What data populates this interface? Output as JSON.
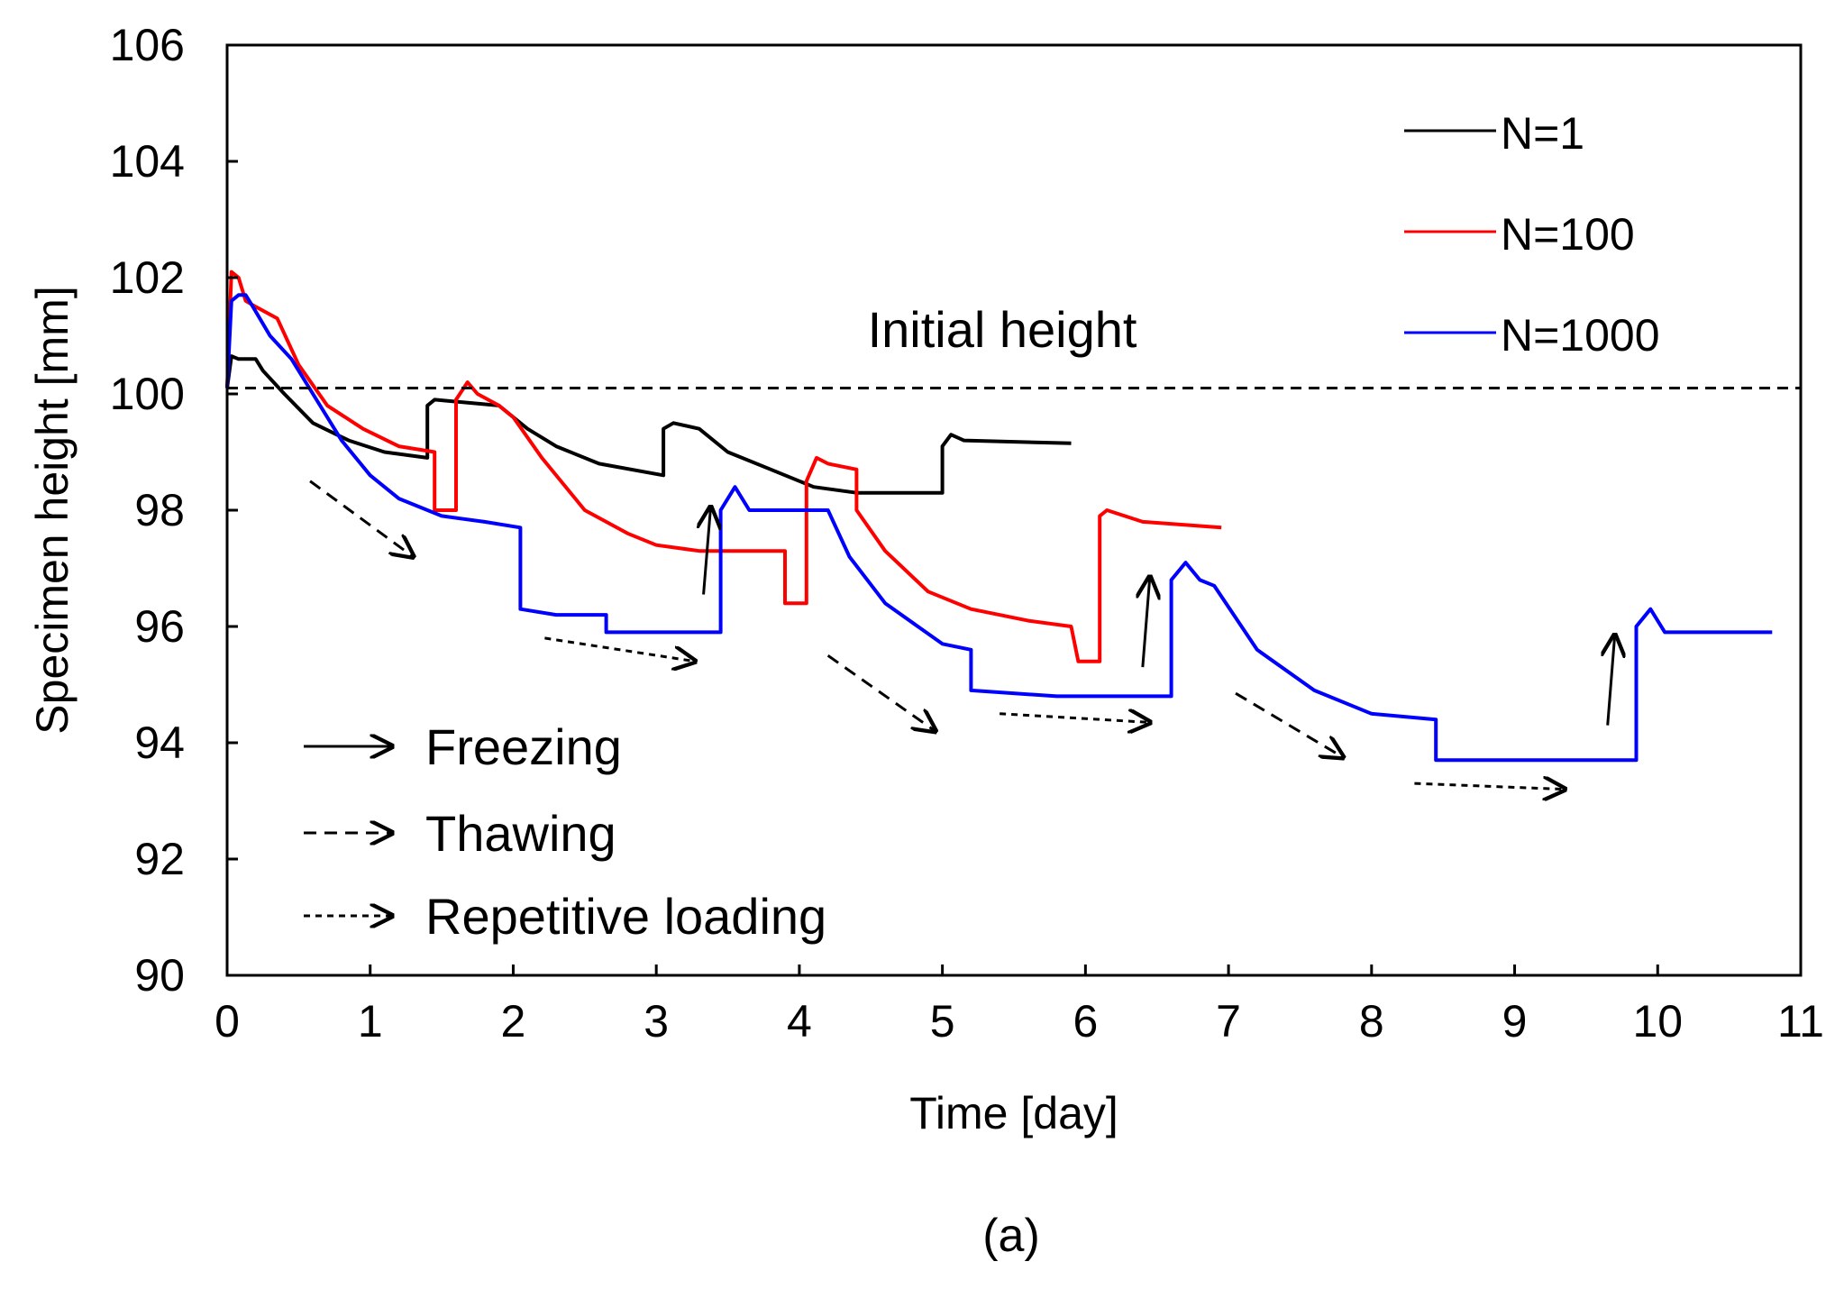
{
  "chart_data": {
    "type": "line",
    "title": "",
    "caption": "(a)",
    "xlabel": "Time [day]",
    "ylabel": "Specimen height [mm]",
    "xlim": [
      0,
      11
    ],
    "ylim": [
      90,
      106
    ],
    "xticks": [
      0,
      1,
      2,
      3,
      4,
      5,
      6,
      7,
      8,
      9,
      10,
      11
    ],
    "yticks": [
      90,
      92,
      94,
      96,
      98,
      100,
      102,
      104,
      106
    ],
    "grid": false,
    "legend_position": "top-right",
    "reference_line": {
      "label": "Initial height",
      "y": 100.1
    },
    "series": [
      {
        "name": "N=1",
        "color": "#000000",
        "x": [
          0,
          0.03,
          0.08,
          0.2,
          0.25,
          0.4,
          0.6,
          0.85,
          1.1,
          1.4,
          1.4,
          1.45,
          1.9,
          2.1,
          2.3,
          2.6,
          3.05,
          3.05,
          3.12,
          3.3,
          3.5,
          3.8,
          4.1,
          4.4,
          4.7,
          5.0,
          5.0,
          5.06,
          5.15,
          5.9
        ],
        "values": [
          100.1,
          100.65,
          100.6,
          100.6,
          100.4,
          100.0,
          99.5,
          99.2,
          99.0,
          98.9,
          99.8,
          99.9,
          99.8,
          99.4,
          99.1,
          98.8,
          98.6,
          99.4,
          99.5,
          99.4,
          99.0,
          98.7,
          98.4,
          98.3,
          98.3,
          98.3,
          99.1,
          99.3,
          99.2,
          99.15
        ]
      },
      {
        "name": "N=100",
        "color": "#ff0000",
        "x": [
          0,
          0.03,
          0.08,
          0.13,
          0.2,
          0.35,
          0.5,
          0.7,
          0.95,
          1.2,
          1.45,
          1.45,
          1.6,
          1.6,
          1.68,
          1.75,
          1.9,
          2.0,
          2.2,
          2.5,
          2.8,
          3.0,
          3.3,
          3.6,
          3.9,
          3.9,
          4.05,
          4.05,
          4.12,
          4.2,
          4.4,
          4.4,
          4.6,
          4.9,
          5.2,
          5.6,
          5.9,
          5.95,
          6.1,
          6.1,
          6.15,
          6.4,
          6.95
        ],
        "values": [
          100.1,
          102.1,
          102.0,
          101.6,
          101.5,
          101.3,
          100.5,
          99.8,
          99.4,
          99.1,
          99.0,
          98.0,
          98.0,
          99.9,
          100.2,
          100.0,
          99.8,
          99.6,
          98.9,
          98.0,
          97.6,
          97.4,
          97.3,
          97.3,
          97.3,
          96.4,
          96.4,
          98.5,
          98.9,
          98.8,
          98.7,
          98.0,
          97.3,
          96.6,
          96.3,
          96.1,
          96.0,
          95.4,
          95.4,
          97.9,
          98.0,
          97.8,
          97.7
        ]
      },
      {
        "name": "N=1000",
        "color": "#0000ff",
        "x": [
          0,
          0.03,
          0.08,
          0.13,
          0.18,
          0.3,
          0.45,
          0.6,
          0.8,
          1.0,
          1.2,
          1.5,
          1.8,
          2.05,
          2.05,
          2.3,
          2.65,
          2.65,
          3.0,
          3.45,
          3.45,
          3.55,
          3.65,
          4.0,
          4.2,
          4.35,
          4.6,
          5.0,
          5.2,
          5.2,
          5.8,
          6.6,
          6.6,
          6.7,
          6.8,
          6.9,
          7.2,
          7.6,
          8.0,
          8.45,
          8.45,
          9.0,
          9.85,
          9.85,
          9.95,
          10.05,
          10.8
        ],
        "values": [
          100.1,
          101.6,
          101.7,
          101.7,
          101.5,
          101.0,
          100.6,
          100.0,
          99.2,
          98.6,
          98.2,
          97.9,
          97.8,
          97.7,
          96.3,
          96.2,
          96.2,
          95.9,
          95.9,
          95.9,
          98.0,
          98.4,
          98.0,
          98.0,
          98.0,
          97.2,
          96.4,
          95.7,
          95.6,
          94.9,
          94.8,
          94.8,
          96.8,
          97.1,
          96.8,
          96.7,
          95.6,
          94.9,
          94.5,
          94.4,
          93.7,
          93.7,
          93.7,
          96.0,
          96.3,
          95.9,
          95.9
        ]
      }
    ],
    "annotations": {
      "arrow_legend": [
        {
          "style": "solid",
          "label": "Freezing"
        },
        {
          "style": "dashed",
          "label": "Thawing"
        },
        {
          "style": "dotted",
          "label": "Repetitive loading"
        }
      ],
      "freezing_arrows": [
        {
          "from": [
            3.33,
            96.55
          ],
          "to": [
            3.38,
            98.05
          ]
        },
        {
          "from": [
            6.4,
            95.3
          ],
          "to": [
            6.45,
            96.85
          ]
        },
        {
          "from": [
            9.65,
            94.3
          ],
          "to": [
            9.7,
            95.85
          ]
        }
      ],
      "thawing_arrows": [
        {
          "from": [
            0.58,
            98.5
          ],
          "to": [
            1.3,
            97.2
          ]
        },
        {
          "from": [
            4.2,
            95.5
          ],
          "to": [
            4.95,
            94.2
          ]
        },
        {
          "from": [
            7.05,
            94.85
          ],
          "to": [
            7.8,
            93.75
          ]
        }
      ],
      "loading_arrows": [
        {
          "from": [
            2.22,
            95.8
          ],
          "to": [
            3.27,
            95.4
          ]
        },
        {
          "from": [
            5.4,
            94.5
          ],
          "to": [
            6.45,
            94.35
          ]
        },
        {
          "from": [
            8.3,
            93.3
          ],
          "to": [
            9.35,
            93.2
          ]
        }
      ]
    }
  }
}
